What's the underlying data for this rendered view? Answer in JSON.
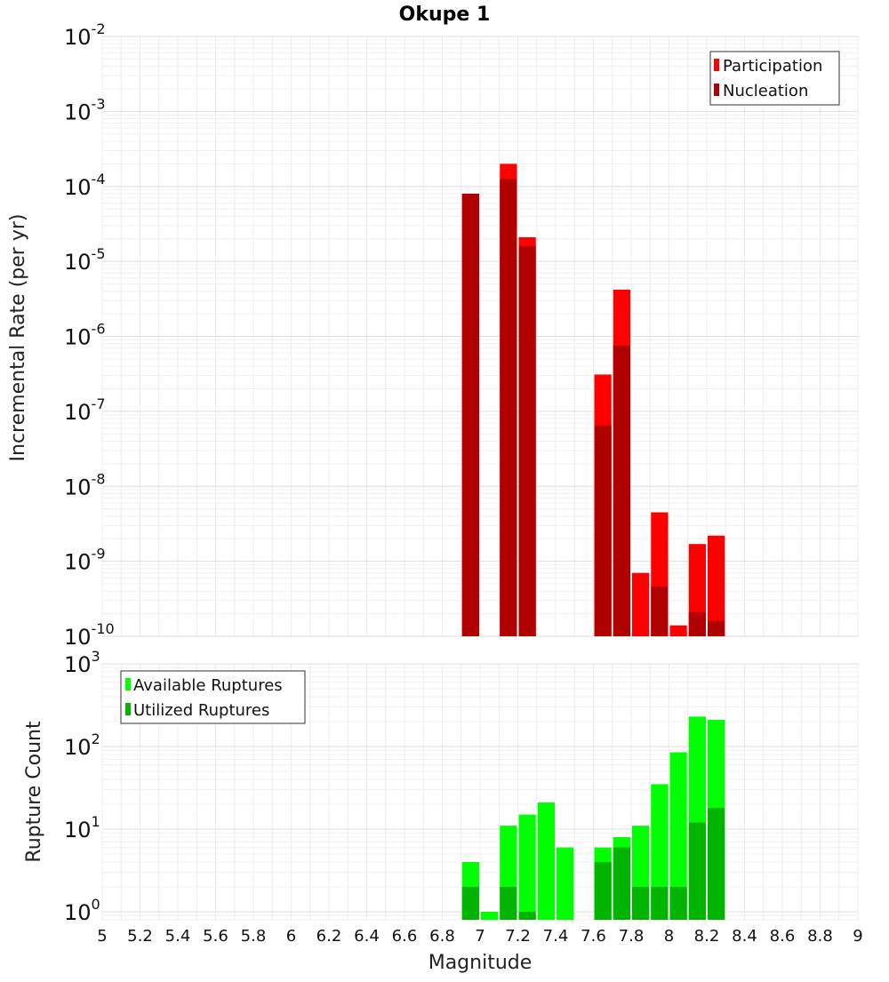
{
  "chart_data": [
    {
      "type": "bar",
      "title": "Okupe 1",
      "xlabel": "",
      "ylabel": "Incremental Rate (per yr)",
      "xlim": [
        5,
        9
      ],
      "ylim": [
        1e-10,
        0.01
      ],
      "yscale": "log",
      "y_ticks": [
        {
          "base": "10",
          "exp": "-2"
        },
        {
          "base": "10",
          "exp": "-3"
        },
        {
          "base": "10",
          "exp": "-4"
        },
        {
          "base": "10",
          "exp": "-5"
        },
        {
          "base": "10",
          "exp": "-6"
        },
        {
          "base": "10",
          "exp": "-7"
        },
        {
          "base": "10",
          "exp": "-8"
        },
        {
          "base": "10",
          "exp": "-9"
        },
        {
          "base": "10",
          "exp": "-10"
        }
      ],
      "grid": true,
      "legend_position": "top-right",
      "bar_width": 0.1,
      "series": [
        {
          "name": "Participation",
          "color": "#ff0000",
          "points": [
            [
              6.95,
              8e-05
            ],
            [
              7.15,
              0.0002
            ],
            [
              7.25,
              2.1e-05
            ],
            [
              7.65,
              3.1e-07
            ],
            [
              7.75,
              4.2e-06
            ],
            [
              7.85,
              7e-10
            ],
            [
              7.95,
              4.5e-09
            ],
            [
              8.05,
              1.4e-10
            ],
            [
              8.15,
              1.7e-09
            ],
            [
              8.25,
              2.2e-09
            ]
          ]
        },
        {
          "name": "Nucleation",
          "color": "#b00000",
          "points": [
            [
              6.95,
              8e-05
            ],
            [
              7.15,
              0.000125
            ],
            [
              7.25,
              1.6e-05
            ],
            [
              7.65,
              6.5e-08
            ],
            [
              7.75,
              7.5e-07
            ],
            [
              7.95,
              4.6e-10
            ],
            [
              8.15,
              2.1e-10
            ],
            [
              8.25,
              1.6e-10
            ]
          ]
        }
      ]
    },
    {
      "type": "bar",
      "title": "",
      "xlabel": "Magnitude",
      "ylabel": "Rupture Count",
      "xlim": [
        5,
        9
      ],
      "ylim": [
        0.8,
        1000
      ],
      "yscale": "log",
      "y_ticks": [
        {
          "base": "10",
          "exp": "3"
        },
        {
          "base": "10",
          "exp": "2"
        },
        {
          "base": "10",
          "exp": "1"
        },
        {
          "base": "10",
          "exp": "0"
        }
      ],
      "x_ticks": [
        "5",
        "5.2",
        "5.4",
        "5.6",
        "5.8",
        "6",
        "6.2",
        "6.4",
        "6.6",
        "6.8",
        "7",
        "7.2",
        "7.4",
        "7.6",
        "7.8",
        "8",
        "8.2",
        "8.4",
        "8.6",
        "8.8",
        "9"
      ],
      "grid": true,
      "legend_position": "top-left",
      "bar_width": 0.1,
      "series": [
        {
          "name": "Available Ruptures",
          "color": "#00ff00",
          "points": [
            [
              6.95,
              4
            ],
            [
              7.05,
              1
            ],
            [
              7.15,
              11
            ],
            [
              7.25,
              15
            ],
            [
              7.35,
              21
            ],
            [
              7.45,
              6
            ],
            [
              7.65,
              6
            ],
            [
              7.75,
              8
            ],
            [
              7.85,
              11
            ],
            [
              7.95,
              35
            ],
            [
              8.05,
              85
            ],
            [
              8.15,
              230
            ],
            [
              8.25,
              210
            ]
          ]
        },
        {
          "name": "Utilized Ruptures",
          "color": "#00b400",
          "points": [
            [
              6.95,
              2
            ],
            [
              7.15,
              2
            ],
            [
              7.25,
              1
            ],
            [
              7.65,
              4
            ],
            [
              7.75,
              6
            ],
            [
              7.85,
              2
            ],
            [
              7.95,
              2
            ],
            [
              8.05,
              2
            ],
            [
              8.15,
              12
            ],
            [
              8.25,
              18
            ]
          ]
        }
      ]
    }
  ]
}
